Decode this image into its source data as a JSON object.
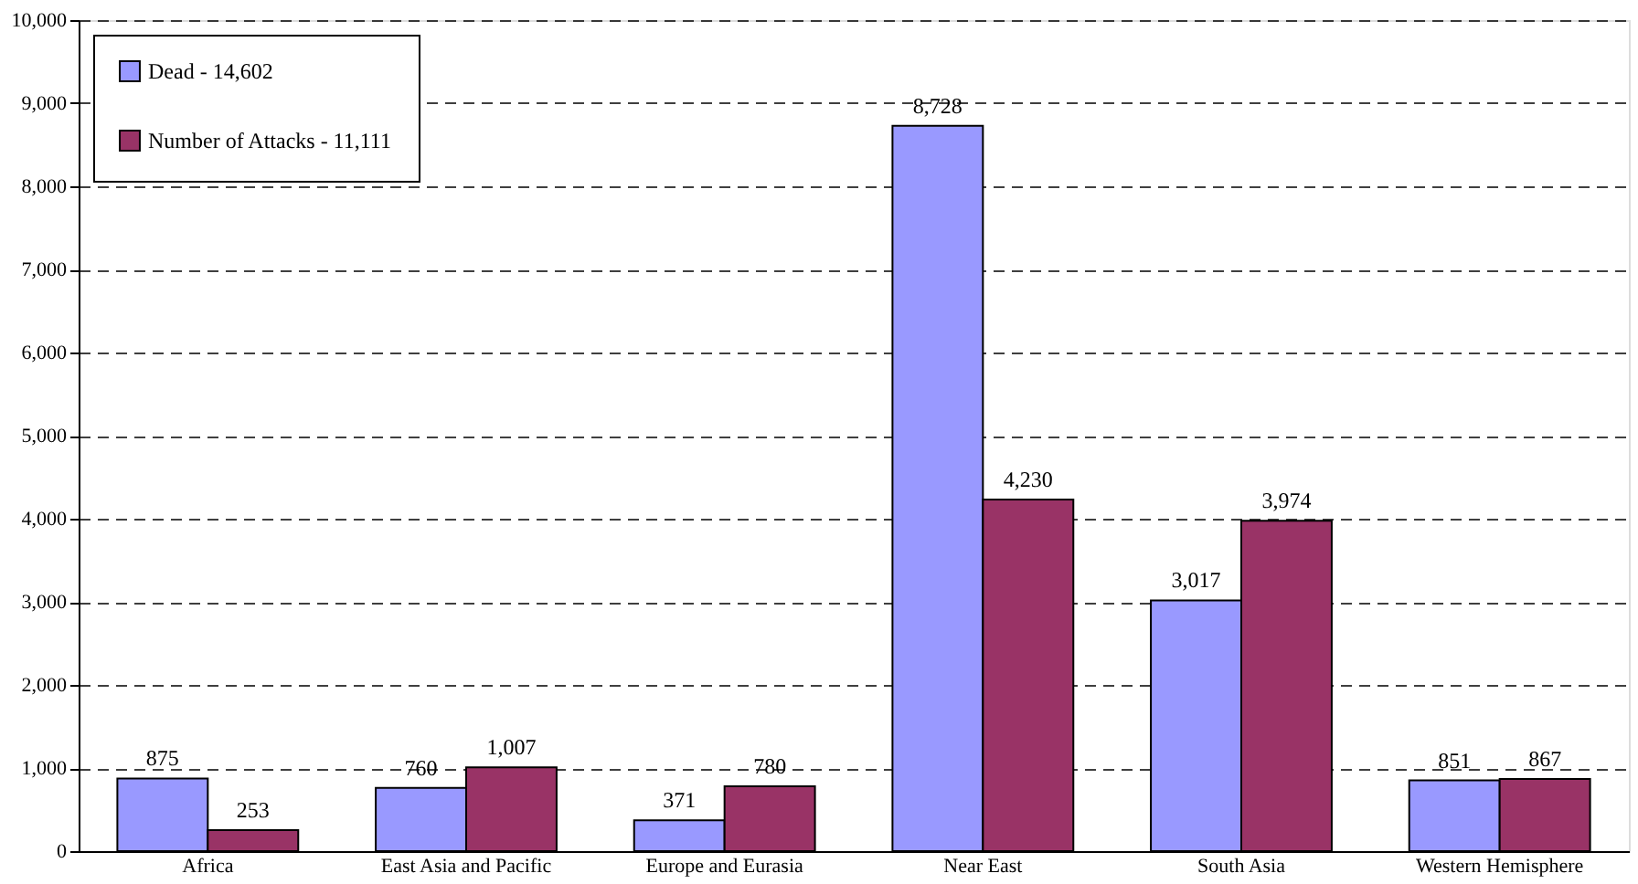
{
  "chart_data": {
    "type": "bar",
    "categories": [
      "Africa",
      "East Asia and Pacific",
      "Europe and Eurasia",
      "Near East",
      "South Asia",
      "Western Hemisphere"
    ],
    "series": [
      {
        "name": "Dead - 14,602",
        "color": "#9999ff",
        "values": [
          875,
          760,
          371,
          8728,
          3017,
          851
        ],
        "value_labels": [
          "875",
          "760",
          "371",
          "8,728",
          "3,017",
          "851"
        ]
      },
      {
        "name": "Number of Attacks - 11,111",
        "color": "#993366",
        "values": [
          253,
          1007,
          780,
          4230,
          3974,
          867
        ],
        "value_labels": [
          "253",
          "1,007",
          "780",
          "4,230",
          "3,974",
          "867"
        ]
      }
    ],
    "ylim": [
      0,
      10000
    ],
    "yticks": [
      0,
      {
        "value": 1000,
        "label": "1,000"
      },
      {
        "value": 2000,
        "label": "2,000"
      },
      {
        "value": 3000,
        "label": "3,000"
      },
      {
        "value": 4000,
        "label": "4,000"
      },
      {
        "value": 5000,
        "label": "5,000"
      },
      {
        "value": 6000,
        "label": "6,000"
      },
      {
        "value": 7000,
        "label": "7,000"
      },
      {
        "value": 8000,
        "label": "8,000"
      },
      {
        "value": 9000,
        "label": "9,000"
      },
      {
        "value": 10000,
        "label": "10,000"
      }
    ],
    "grid": "y",
    "legend": "top left"
  }
}
